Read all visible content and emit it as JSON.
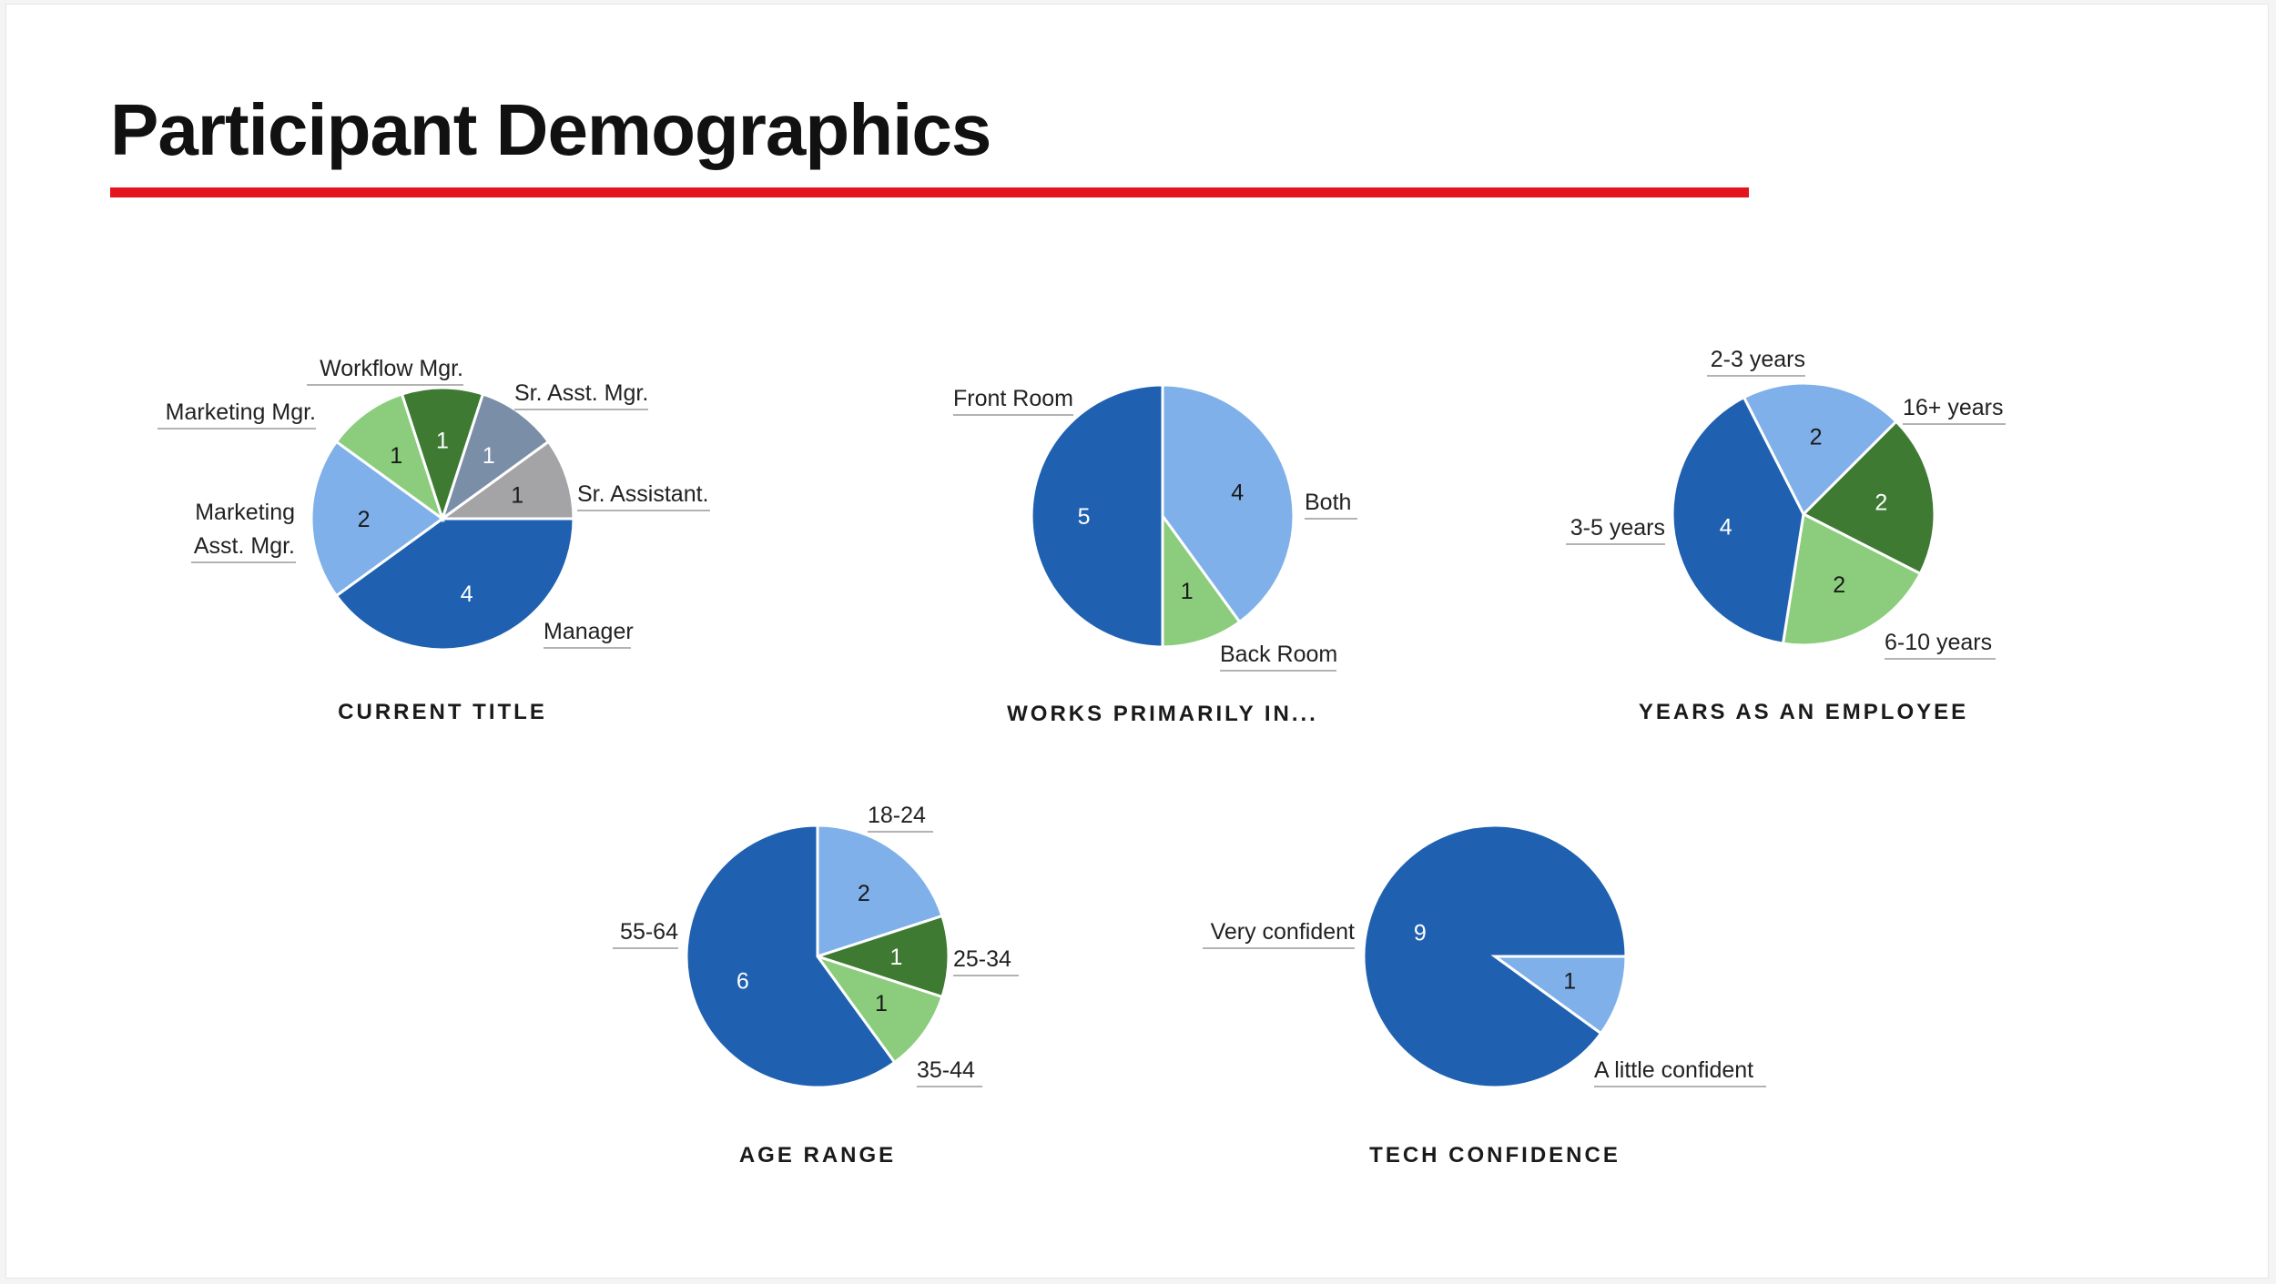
{
  "page": {
    "title": "Participant Demographics"
  },
  "colors": {
    "dark_blue": "#1f61b0",
    "light_blue": "#7fb0ea",
    "dark_green": "#3f7a33",
    "light_green": "#8bcd7c",
    "slate": "#7a8ea8",
    "gray": "#a4a4a6",
    "accent_red": "#e3141c"
  },
  "chart_data": [
    {
      "type": "pie",
      "title": "CURRENT TITLE",
      "series": [
        {
          "name": "Manager",
          "value": 4,
          "color": "#1f61b0",
          "value_text": "light"
        },
        {
          "name": "Marketing Asst. Mgr.",
          "value": 2,
          "color": "#7fb0ea",
          "value_text": "dark"
        },
        {
          "name": "Marketing Mgr.",
          "value": 1,
          "color": "#8bcd7c",
          "value_text": "dark"
        },
        {
          "name": "Workflow Mgr.",
          "value": 1,
          "color": "#3f7a33",
          "value_text": "light"
        },
        {
          "name": "Sr. Asst. Mgr.",
          "value": 1,
          "color": "#7a8ea8",
          "value_text": "light"
        },
        {
          "name": "Sr. Assistant.",
          "value": 1,
          "color": "#a4a4a6",
          "value_text": "dark"
        }
      ]
    },
    {
      "type": "pie",
      "title": "WORKS PRIMARILY IN...",
      "series": [
        {
          "name": "Both",
          "value": 4,
          "color": "#7fb0ea",
          "value_text": "dark"
        },
        {
          "name": "Back Room",
          "value": 1,
          "color": "#8bcd7c",
          "value_text": "dark"
        },
        {
          "name": "Front Room",
          "value": 5,
          "color": "#1f61b0",
          "value_text": "light"
        }
      ]
    },
    {
      "type": "pie",
      "title": "YEARS AS AN EMPLOYEE",
      "series": [
        {
          "name": "16+ years",
          "value": 2,
          "color": "#3f7a33",
          "value_text": "light"
        },
        {
          "name": "6-10 years",
          "value": 2,
          "color": "#8bcd7c",
          "value_text": "dark"
        },
        {
          "name": "3-5 years",
          "value": 4,
          "color": "#1f61b0",
          "value_text": "light"
        },
        {
          "name": "2-3 years",
          "value": 2,
          "color": "#7fb0ea",
          "value_text": "dark"
        }
      ]
    },
    {
      "type": "pie",
      "title": "AGE RANGE",
      "series": [
        {
          "name": "25-34",
          "value": 2,
          "color": "#7fb0ea",
          "value_text": "dark"
        },
        {
          "name": "35-44",
          "value": 1,
          "color": "#3f7a33",
          "value_text": "light"
        },
        {
          "name": "55-64",
          "value": 1,
          "color": "#8bcd7c",
          "value_text": "dark"
        },
        {
          "name": "18-24",
          "value": 6,
          "color": "#1f61b0",
          "value_text": "light"
        }
      ]
    },
    {
      "type": "pie",
      "title": "TECH CONFIDENCE",
      "series": [
        {
          "name": "A little confident",
          "value": 1,
          "color": "#7fb0ea",
          "value_text": "dark"
        },
        {
          "name": "Very confident",
          "value": 9,
          "color": "#1f61b0",
          "value_text": "light"
        }
      ]
    }
  ]
}
